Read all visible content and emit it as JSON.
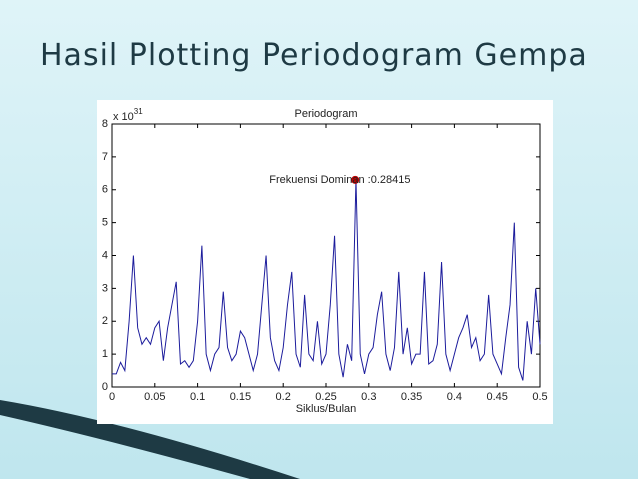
{
  "header": {
    "title": "Hasil Plotting Periodogram Gempa"
  },
  "chart_data": {
    "type": "line",
    "title": "Periodogram",
    "xlabel": "Siklus/Bulan",
    "y_multiplier": {
      "base": "x 10",
      "exponent": "31"
    },
    "annotation": {
      "text": "Frekuensi Dominan :0.28415",
      "x": 0.28415,
      "y": 6.3,
      "color": "#c00000"
    },
    "x": [
      0,
      0.005,
      0.01,
      0.015,
      0.02,
      0.025,
      0.03,
      0.035,
      0.04,
      0.045,
      0.05,
      0.055,
      0.06,
      0.065,
      0.07,
      0.075,
      0.08,
      0.085,
      0.09,
      0.095,
      0.1,
      0.105,
      0.11,
      0.115,
      0.12,
      0.125,
      0.13,
      0.135,
      0.14,
      0.145,
      0.15,
      0.155,
      0.16,
      0.165,
      0.17,
      0.175,
      0.18,
      0.185,
      0.19,
      0.195,
      0.2,
      0.205,
      0.21,
      0.215,
      0.22,
      0.225,
      0.23,
      0.235,
      0.24,
      0.245,
      0.25,
      0.255,
      0.26,
      0.265,
      0.27,
      0.275,
      0.28,
      0.285,
      0.29,
      0.295,
      0.3,
      0.305,
      0.31,
      0.315,
      0.32,
      0.325,
      0.33,
      0.335,
      0.34,
      0.345,
      0.35,
      0.355,
      0.36,
      0.365,
      0.37,
      0.375,
      0.38,
      0.385,
      0.39,
      0.395,
      0.4,
      0.405,
      0.41,
      0.415,
      0.42,
      0.425,
      0.43,
      0.435,
      0.44,
      0.445,
      0.45,
      0.455,
      0.46,
      0.465,
      0.47,
      0.475,
      0.48,
      0.485,
      0.49,
      0.495,
      0.5
    ],
    "series": [
      {
        "name": "Periodogram",
        "color": "#1c1c9c",
        "values": [
          0.4,
          0.4,
          0.75,
          0.5,
          2.0,
          4.0,
          1.8,
          1.3,
          1.5,
          1.3,
          1.8,
          2.0,
          0.8,
          1.8,
          2.5,
          3.2,
          0.7,
          0.8,
          0.6,
          0.8,
          2.0,
          4.3,
          1.0,
          0.5,
          1.0,
          1.2,
          2.9,
          1.2,
          0.8,
          1.0,
          1.7,
          1.5,
          1.0,
          0.5,
          1.0,
          2.5,
          4.0,
          1.5,
          0.8,
          0.5,
          1.2,
          2.5,
          3.5,
          1.0,
          0.6,
          2.8,
          1.0,
          0.8,
          2.0,
          0.7,
          1.0,
          2.5,
          4.6,
          1.0,
          0.3,
          1.3,
          0.8,
          6.3,
          1.0,
          0.4,
          1.0,
          1.2,
          2.2,
          2.9,
          1.0,
          0.5,
          1.2,
          3.5,
          1.0,
          1.8,
          0.7,
          1.0,
          1.0,
          3.5,
          0.7,
          0.8,
          1.3,
          3.8,
          1.0,
          0.5,
          1.0,
          1.5,
          1.8,
          2.2,
          1.2,
          1.5,
          0.8,
          1.0,
          2.8,
          1.0,
          0.7,
          0.4,
          1.5,
          2.5,
          5.0,
          0.6,
          0.2,
          2.0,
          1.0,
          3.0,
          1.3
        ]
      }
    ],
    "xlim": [
      0,
      0.5
    ],
    "ylim": [
      0,
      8
    ],
    "xticks": [
      0,
      0.05,
      0.1,
      0.15,
      0.2,
      0.25,
      0.3,
      0.35,
      0.4,
      0.45,
      0.5
    ],
    "yticks": [
      0,
      1,
      2,
      3,
      4,
      5,
      6,
      7,
      8
    ]
  }
}
